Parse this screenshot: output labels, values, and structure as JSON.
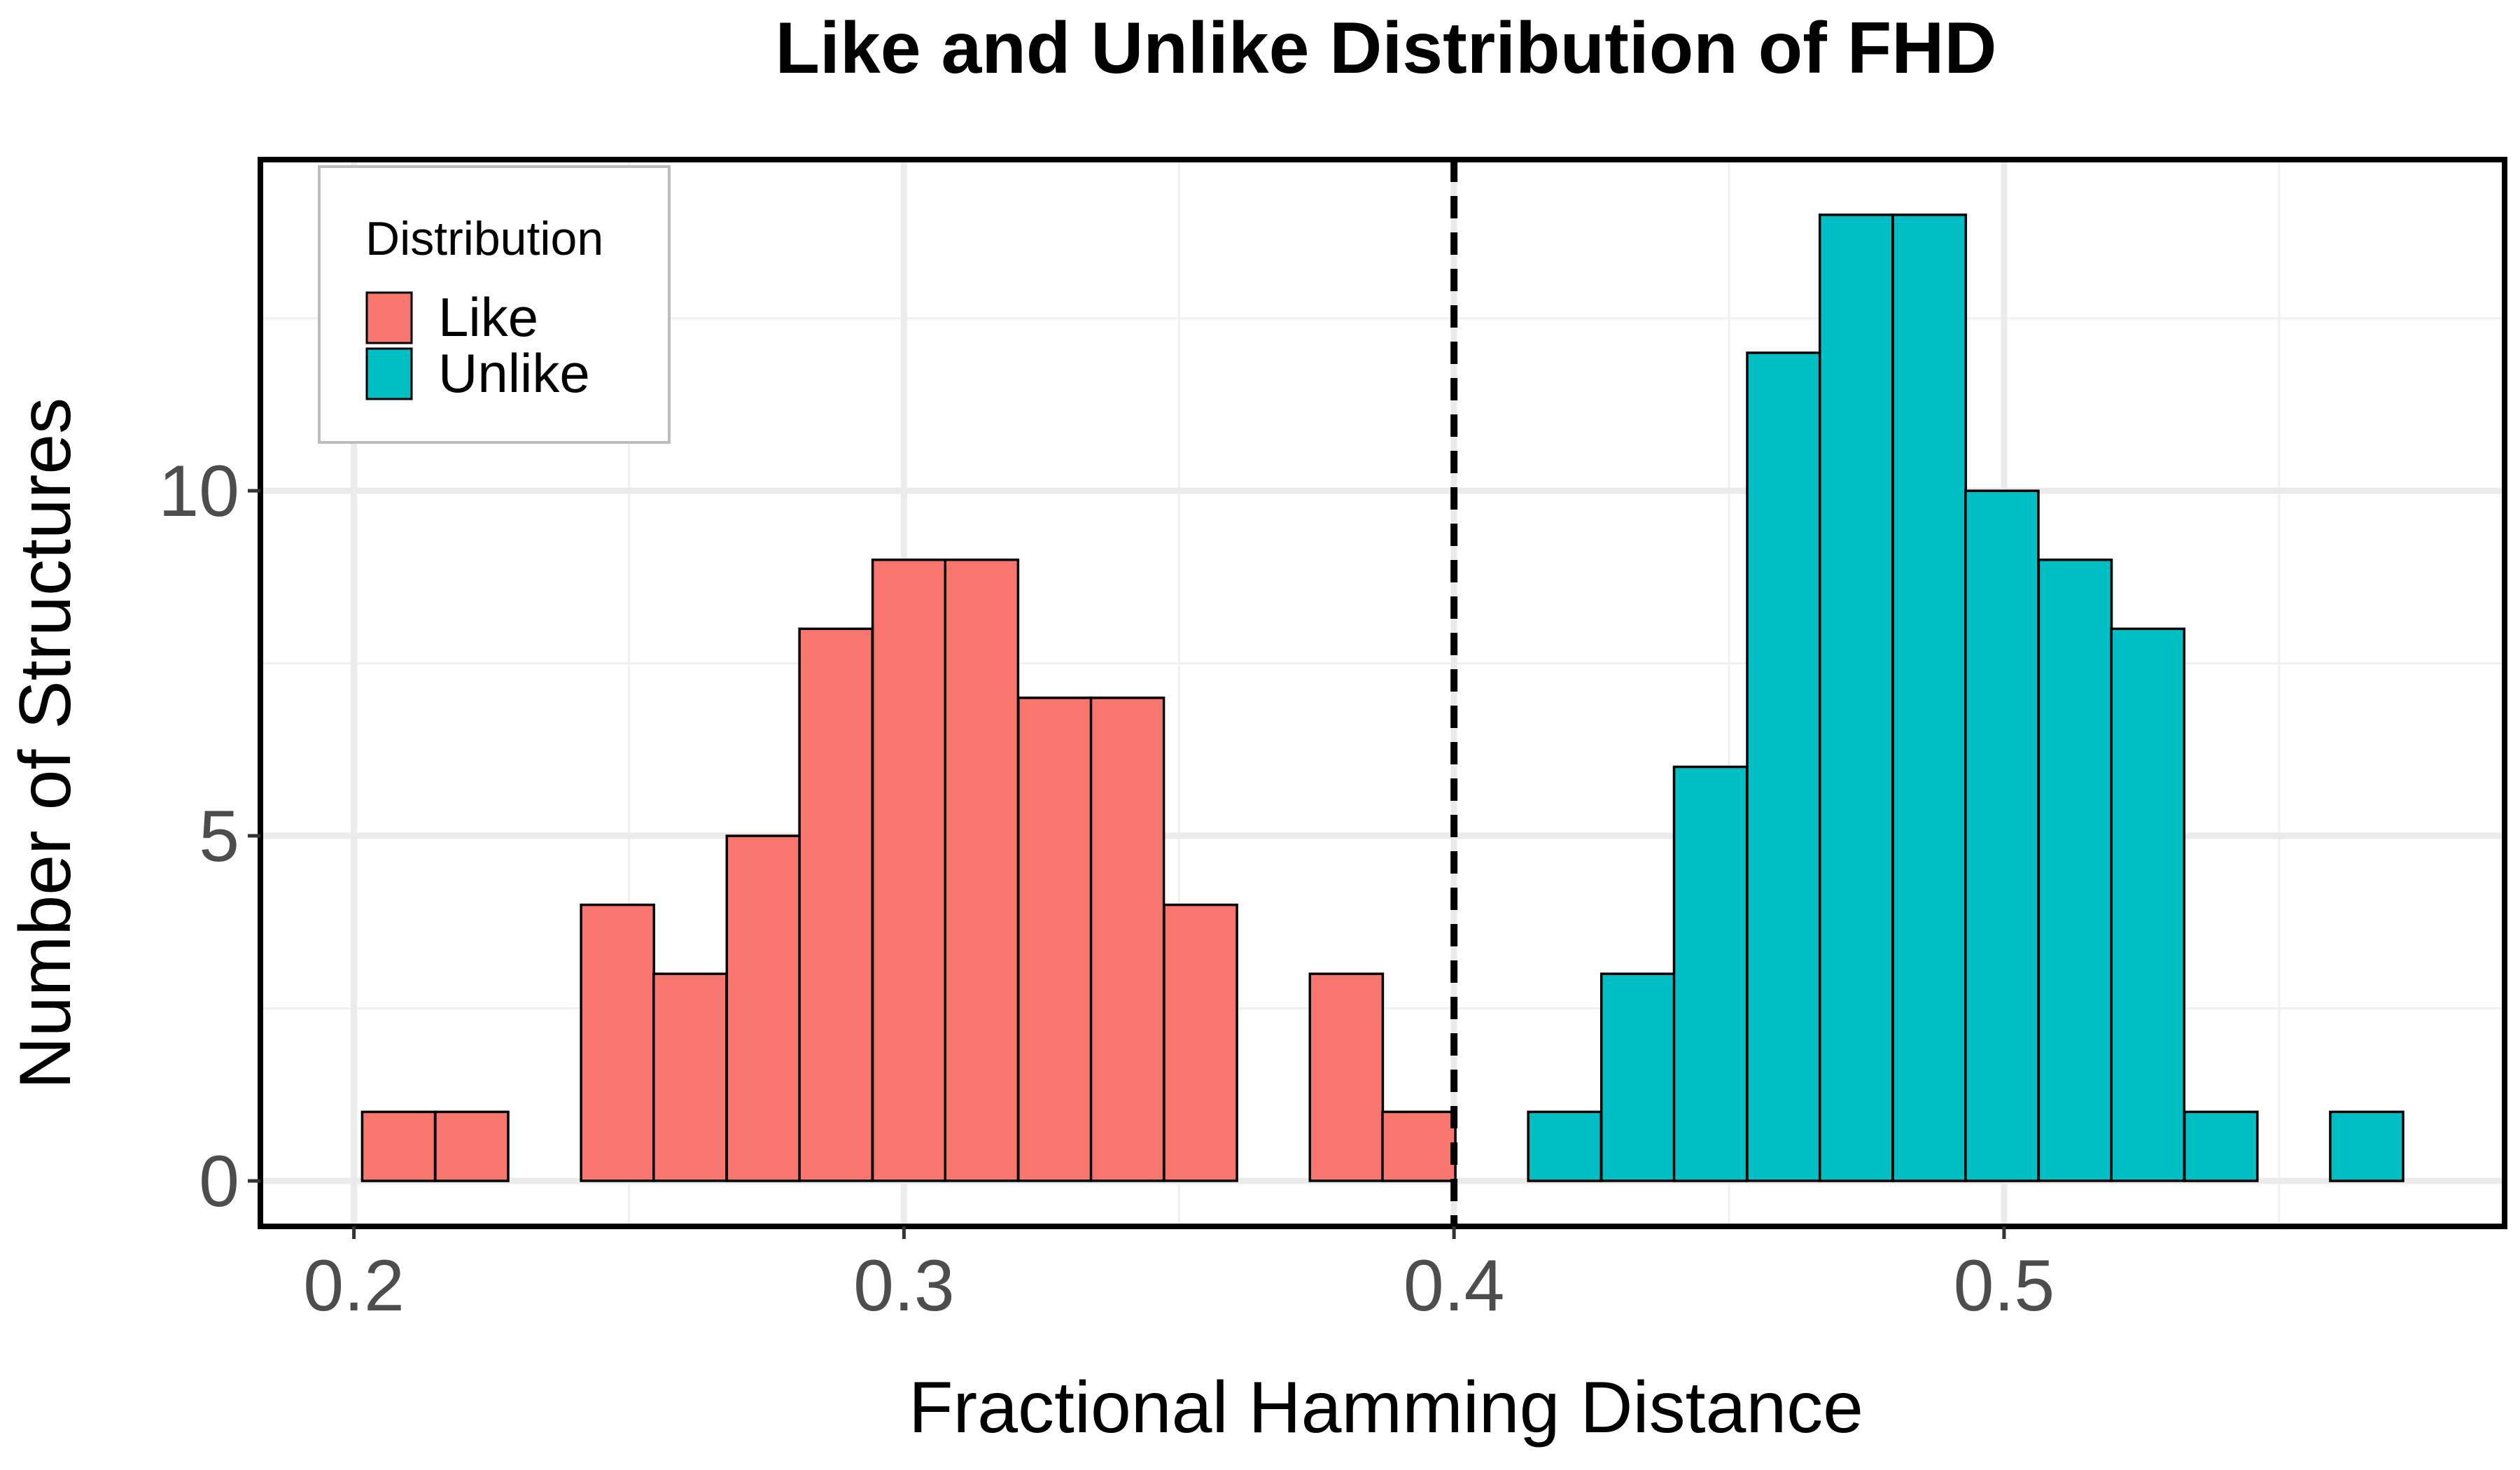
{
  "chart_data": {
    "type": "bar",
    "title": "Like and Unlike Distribution of FHD",
    "xlabel": "Fractional Hamming Distance",
    "ylabel": "Number of Structures",
    "xlim": [
      0.183,
      0.591
    ],
    "ylim": [
      -0.66,
      14.8
    ],
    "x_ticks": [
      0.2,
      0.3,
      0.4,
      0.5
    ],
    "x_tick_labels": [
      "0.2",
      "0.3",
      "0.4",
      "0.5"
    ],
    "y_ticks": [
      0,
      5,
      10
    ],
    "y_tick_labels": [
      "0",
      "5",
      "10"
    ],
    "y_minor_ticks": [
      2.5,
      7.5,
      12.5
    ],
    "x_minor_ticks": [
      0.25,
      0.35,
      0.45,
      0.55
    ],
    "bin_width": 0.01325,
    "vline": {
      "x": 0.4,
      "style": "dashed",
      "color": "#000000"
    },
    "grid": true,
    "legend": {
      "title": "Distribution",
      "position": "top-left",
      "entries": [
        {
          "name": "Like",
          "color": "#F8766D"
        },
        {
          "name": "Unlike",
          "color": "#00BFC4"
        }
      ]
    },
    "series": [
      {
        "name": "Like",
        "color": "#F8766D",
        "bin_starts": [
          0.2015,
          0.2148,
          0.228,
          0.2413,
          0.2545,
          0.2678,
          0.281,
          0.2943,
          0.3075,
          0.3208,
          0.334,
          0.3473,
          0.3605,
          0.3738,
          0.387
        ],
        "values": [
          1,
          1,
          0,
          4,
          3,
          5,
          8,
          9,
          9,
          7,
          7,
          4,
          0,
          3,
          1
        ]
      },
      {
        "name": "Unlike",
        "color": "#00BFC4",
        "bin_starts": [
          0.4003,
          0.4135,
          0.4268,
          0.44,
          0.4533,
          0.4665,
          0.4798,
          0.493,
          0.5063,
          0.5195,
          0.5328,
          0.546,
          0.5593
        ],
        "values": [
          0,
          1,
          3,
          6,
          12,
          14,
          14,
          10,
          9,
          8,
          1,
          0,
          1
        ]
      }
    ]
  }
}
